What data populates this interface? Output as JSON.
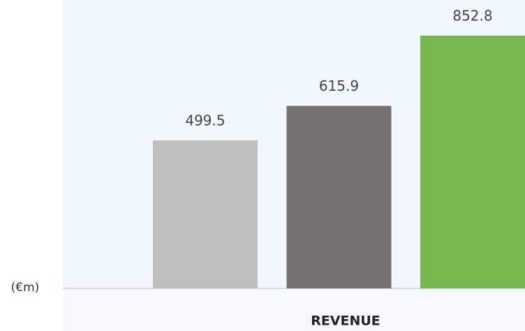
{
  "chart_data": {
    "type": "bar",
    "x_label": "REVENUE",
    "unit_label": "(€m)",
    "categories": [
      null,
      null,
      null
    ],
    "values": [
      499.5,
      615.9,
      852.8
    ],
    "colors": [
      "#bfbfbf",
      "#767171",
      "#76b84c"
    ],
    "ylim": [
      0,
      973
    ]
  }
}
